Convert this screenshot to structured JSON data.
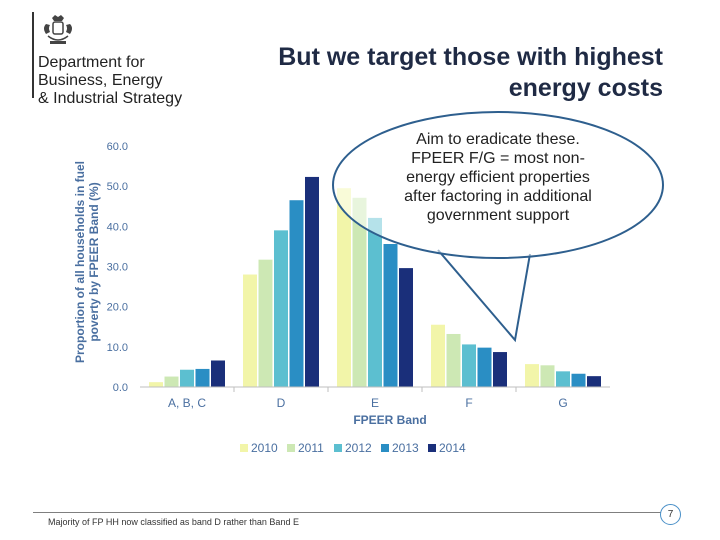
{
  "logo": {
    "department_lines": [
      "Department for",
      "Business, Energy",
      "& Industrial Strategy"
    ],
    "icon": "royal-crest-icon"
  },
  "slide": {
    "title_lines": [
      "But we target those with highest",
      "energy costs"
    ],
    "callout_lines": [
      "Aim to eradicate these.",
      "FPEER F/G = most non-",
      "energy efficient properties",
      "after factoring in additional",
      "government support"
    ],
    "footnote": "Majority of FP HH now classified as band D rather than Band E",
    "page_number": "7"
  },
  "chart_data": {
    "type": "bar",
    "title": "",
    "xlabel": "FPEER Band",
    "ylabel": "Proportion of all households in fuel poverty by FPEER Band (%)",
    "ylabel_lines": [
      "Proportion of all households in fuel",
      "poverty by FPEER Band (%)"
    ],
    "ylim": [
      0,
      60
    ],
    "yticks": [
      "0.0",
      "10.0",
      "20.0",
      "30.0",
      "40.0",
      "50.0",
      "60.0"
    ],
    "categories": [
      "A, B, C",
      "D",
      "E",
      "F",
      "G"
    ],
    "series": [
      {
        "name": "2010",
        "color": "#f2f5a9",
        "values": [
          1.2,
          28.0,
          49.5,
          15.5,
          5.7
        ]
      },
      {
        "name": "2011",
        "color": "#cde8b4",
        "values": [
          2.6,
          31.7,
          47.1,
          13.2,
          5.4
        ]
      },
      {
        "name": "2012",
        "color": "#5cbfd0",
        "values": [
          4.3,
          39.0,
          42.1,
          10.6,
          3.9
        ]
      },
      {
        "name": "2013",
        "color": "#2a8ec4",
        "values": [
          4.5,
          46.5,
          35.6,
          9.8,
          3.3
        ]
      },
      {
        "name": "2014",
        "color": "#1a2f7a",
        "values": [
          6.6,
          52.3,
          29.6,
          8.7,
          2.7
        ]
      }
    ],
    "legend_position": "bottom"
  }
}
